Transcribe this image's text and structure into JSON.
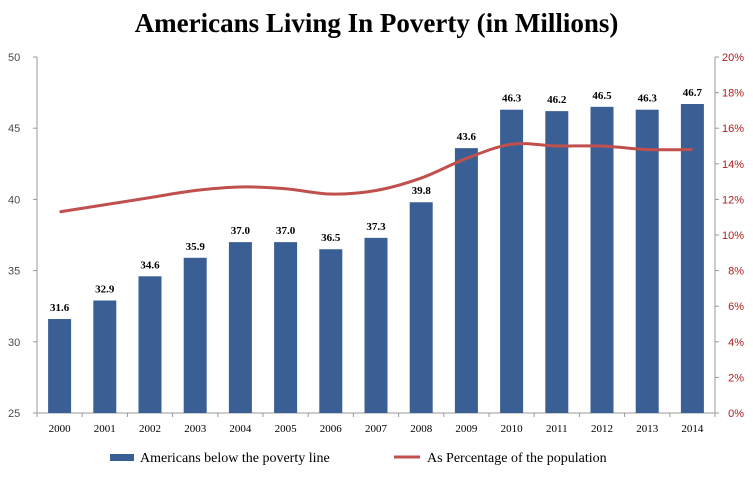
{
  "chart_data": {
    "type": "bar",
    "title": "Americans Living In Poverty (in Millions)",
    "categories": [
      "2000",
      "2001",
      "2002",
      "2003",
      "2004",
      "2005",
      "2006",
      "2007",
      "2008",
      "2009",
      "2010",
      "2011",
      "2012",
      "2013",
      "2014"
    ],
    "series": [
      {
        "name": "Americans below the poverty line",
        "type": "bar",
        "axis": "left",
        "values": [
          31.6,
          32.9,
          34.6,
          35.9,
          37.0,
          37.0,
          36.5,
          37.3,
          39.8,
          43.6,
          46.3,
          46.2,
          46.5,
          46.3,
          46.7
        ],
        "labels": [
          "31.6",
          "32.9",
          "34.6",
          "35.9",
          "37.0",
          "37.0",
          "36.5",
          "37.3",
          "39.8",
          "43.6",
          "46.3",
          "46.2",
          "46.5",
          "46.3",
          "46.7"
        ],
        "color": "#3a5f94"
      },
      {
        "name": "As Percentage of the population",
        "type": "line",
        "axis": "right",
        "values": [
          11.3,
          11.7,
          12.1,
          12.5,
          12.7,
          12.6,
          12.3,
          12.5,
          13.2,
          14.3,
          15.1,
          15.0,
          15.0,
          14.8,
          14.8
        ],
        "color": "#c0504d"
      }
    ],
    "y_left": {
      "range": [
        25,
        50
      ],
      "ticks": [
        "25",
        "30",
        "35",
        "40",
        "45",
        "50"
      ]
    },
    "y_right": {
      "range": [
        0,
        20
      ],
      "ticks": [
        "0%",
        "2%",
        "4%",
        "6%",
        "8%",
        "10%",
        "12%",
        "14%",
        "16%",
        "18%",
        "20%"
      ]
    },
    "grid": false,
    "legend": "bottom"
  }
}
